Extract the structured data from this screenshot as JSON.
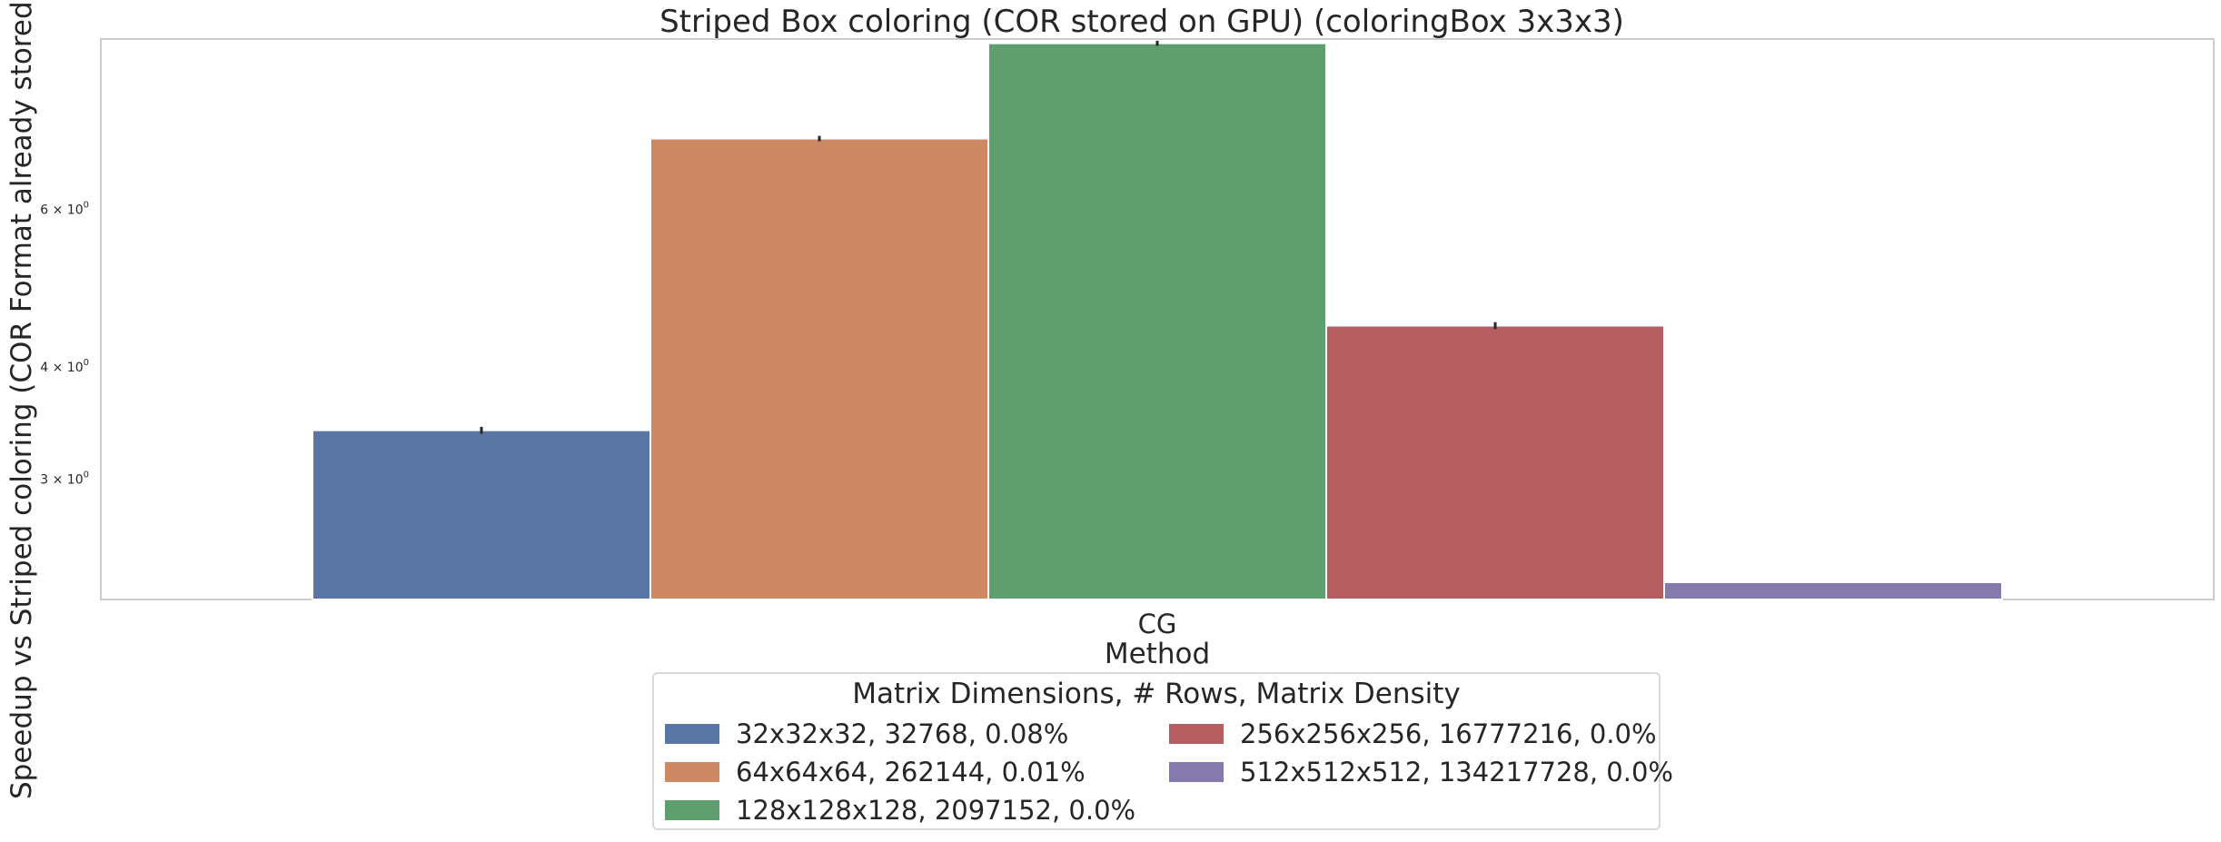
{
  "chart_data": {
    "type": "bar",
    "title": "Striped Box coloring (COR stored on GPU) (coloringBox 3x3x3)",
    "xlabel": "Method",
    "ylabel": "Speedup vs Striped coloring (COR Format already stored on GPU)",
    "yscale": "log",
    "ylim": [
      2.2,
      9.3
    ],
    "categories": [
      "CG"
    ],
    "yticks": [
      {
        "value": 3,
        "label_base": "3 × 10",
        "label_exp": "0"
      },
      {
        "value": 4,
        "label_base": "4 × 10",
        "label_exp": "0"
      },
      {
        "value": 6,
        "label_base": "6 × 10",
        "label_exp": "0"
      }
    ],
    "grid": false,
    "series": [
      {
        "name": "32x32x32, 32768, 0.08%",
        "color": "#5875a4",
        "values": [
          3.4
        ],
        "err": [
          0.03
        ]
      },
      {
        "name": "64x64x64, 262144, 0.01%",
        "color": "#cc8963",
        "values": [
          7.2
        ],
        "err": [
          0.05
        ]
      },
      {
        "name": "128x128x128, 2097152, 0.0%",
        "color": "#5f9e6e",
        "values": [
          9.2
        ],
        "err": [
          0.06
        ]
      },
      {
        "name": "256x256x256, 16777216, 0.0%",
        "color": "#b55d60",
        "values": [
          4.45
        ],
        "err": [
          0.04
        ]
      },
      {
        "name": "512x512x512, 134217728, 0.0%",
        "color": "#857aab",
        "values": [
          2.3
        ],
        "err": [
          0.0
        ]
      }
    ],
    "legend": {
      "title": "Matrix Dimensions, # Rows, Matrix Density",
      "placement": "below plot, centered",
      "columns": 2
    }
  }
}
